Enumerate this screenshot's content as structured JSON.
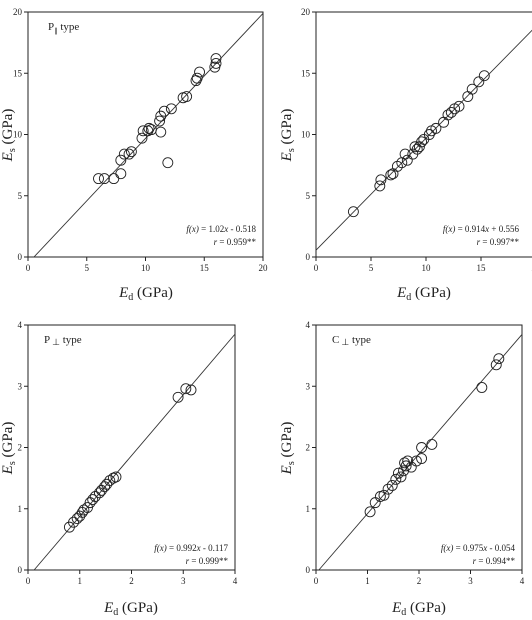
{
  "chart_data": [
    {
      "type": "scatter",
      "panel_label": "P",
      "panel_symbol": "∥",
      "panel_suffix": " type",
      "xlim": [
        0,
        20
      ],
      "ylim": [
        0,
        20
      ],
      "xticks": [
        "0",
        "5",
        "10",
        "15",
        "20"
      ],
      "yticks": [
        "0",
        "5",
        "10",
        "15",
        "20"
      ],
      "xlabel": {
        "var": "E",
        "sub": "d",
        "unit": " (GPa)"
      },
      "ylabel": {
        "var": "E",
        "sub": "s",
        "unit": " (GPa)"
      },
      "equation": {
        "prefix": "f(x)",
        "body": " = 1.02",
        "x": "x",
        "rest": " - 0.518"
      },
      "r_text": {
        "prefix": "r",
        "body": " = 0.959**"
      },
      "fit": {
        "slope": 1.02,
        "intercept": -0.518
      },
      "points": [
        [
          6.0,
          6.4
        ],
        [
          6.5,
          6.4
        ],
        [
          7.3,
          6.4
        ],
        [
          7.9,
          7.9
        ],
        [
          7.9,
          6.8
        ],
        [
          8.2,
          8.4
        ],
        [
          8.6,
          8.4
        ],
        [
          8.8,
          8.6
        ],
        [
          9.7,
          9.7
        ],
        [
          9.8,
          10.3
        ],
        [
          10.2,
          10.3
        ],
        [
          10.3,
          10.5
        ],
        [
          10.5,
          10.4
        ],
        [
          11.3,
          10.2
        ],
        [
          11.2,
          11.1
        ],
        [
          11.3,
          11.5
        ],
        [
          11.6,
          11.9
        ],
        [
          11.9,
          7.7
        ],
        [
          12.2,
          12.1
        ],
        [
          13.2,
          13.0
        ],
        [
          13.5,
          13.1
        ],
        [
          14.3,
          14.4
        ],
        [
          14.4,
          14.6
        ],
        [
          14.6,
          15.1
        ],
        [
          15.9,
          15.5
        ],
        [
          16.0,
          15.8
        ],
        [
          16.0,
          16.2
        ]
      ]
    },
    {
      "type": "scatter",
      "panel_label": "",
      "panel_symbol": "",
      "panel_suffix": "",
      "xlim": [
        0,
        20
      ],
      "ylim": [
        0,
        20
      ],
      "xticks": [
        "0",
        "5",
        "10",
        "15",
        "20"
      ],
      "yticks": [
        "0",
        "5",
        "10",
        "15",
        "20"
      ],
      "xlabel": {
        "var": "E",
        "sub": "d",
        "unit": " (GPa)"
      },
      "ylabel": {
        "var": "E",
        "sub": "s",
        "unit": " (GPa)"
      },
      "equation": {
        "prefix": "f(x)",
        "body": " = 0.914",
        "x": "x",
        "rest": " + 0.556"
      },
      "r_text": {
        "prefix": "r",
        "body": " = 0.997**"
      },
      "fit": {
        "slope": 0.914,
        "intercept": 0.556
      },
      "points": [
        [
          3.4,
          3.7
        ],
        [
          5.8,
          5.8
        ],
        [
          5.9,
          6.3
        ],
        [
          6.8,
          6.7
        ],
        [
          7.0,
          6.8
        ],
        [
          7.4,
          7.4
        ],
        [
          7.8,
          7.7
        ],
        [
          8.1,
          8.4
        ],
        [
          8.3,
          7.9
        ],
        [
          8.8,
          8.4
        ],
        [
          9.0,
          9.0
        ],
        [
          9.2,
          8.8
        ],
        [
          9.4,
          9.0
        ],
        [
          9.6,
          9.4
        ],
        [
          9.8,
          9.6
        ],
        [
          10.3,
          10.0
        ],
        [
          10.5,
          10.3
        ],
        [
          10.9,
          10.5
        ],
        [
          11.6,
          11.0
        ],
        [
          12.0,
          11.6
        ],
        [
          12.3,
          11.8
        ],
        [
          12.6,
          12.1
        ],
        [
          13.0,
          12.3
        ],
        [
          13.8,
          13.1
        ],
        [
          14.2,
          13.7
        ],
        [
          14.8,
          14.3
        ],
        [
          15.3,
          14.8
        ]
      ]
    },
    {
      "type": "scatter",
      "panel_label": "P",
      "panel_symbol": "⊥",
      "panel_suffix": " type",
      "xlim": [
        0,
        4
      ],
      "ylim": [
        0,
        4
      ],
      "xticks": [
        "0",
        "1",
        "2",
        "3",
        "4"
      ],
      "yticks": [
        "0",
        "1",
        "2",
        "3",
        "4"
      ],
      "xlabel": {
        "var": "E",
        "sub": "d",
        "unit": " (GPa)"
      },
      "ylabel": {
        "var": "E",
        "sub": "s",
        "unit": " (GPa)"
      },
      "equation": {
        "prefix": "f(x)",
        "body": " = 0.992",
        "x": "x",
        "rest": " - 0.117"
      },
      "r_text": {
        "prefix": "r",
        "body": " = 0.999**"
      },
      "fit": {
        "slope": 0.992,
        "intercept": -0.117
      },
      "points": [
        [
          0.8,
          0.7
        ],
        [
          0.88,
          0.78
        ],
        [
          0.95,
          0.84
        ],
        [
          1.0,
          0.88
        ],
        [
          1.05,
          0.94
        ],
        [
          1.08,
          0.98
        ],
        [
          1.15,
          1.02
        ],
        [
          1.2,
          1.1
        ],
        [
          1.25,
          1.15
        ],
        [
          1.3,
          1.2
        ],
        [
          1.38,
          1.26
        ],
        [
          1.42,
          1.3
        ],
        [
          1.48,
          1.36
        ],
        [
          1.52,
          1.4
        ],
        [
          1.58,
          1.46
        ],
        [
          1.65,
          1.5
        ],
        [
          1.7,
          1.52
        ],
        [
          2.9,
          2.82
        ],
        [
          3.05,
          2.96
        ],
        [
          3.15,
          2.94
        ]
      ]
    },
    {
      "type": "scatter",
      "panel_label": "C",
      "panel_symbol": "⊥",
      "panel_suffix": " type",
      "xlim": [
        0,
        4
      ],
      "ylim": [
        0,
        4
      ],
      "xticks": [
        "0",
        "1",
        "2",
        "3",
        "4"
      ],
      "yticks": [
        "0",
        "1",
        "2",
        "3",
        "4"
      ],
      "xlabel": {
        "var": "E",
        "sub": "d",
        "unit": " (GPa)"
      },
      "ylabel": {
        "var": "E",
        "sub": "s",
        "unit": " (GPa)"
      },
      "equation": {
        "prefix": "f(x)",
        "body": " = 0.975",
        "x": "x",
        "rest": " - 0.054"
      },
      "r_text": {
        "prefix": "r",
        "body": " = 0.994**"
      },
      "fit": {
        "slope": 0.975,
        "intercept": -0.054
      },
      "points": [
        [
          1.05,
          0.95
        ],
        [
          1.15,
          1.1
        ],
        [
          1.25,
          1.2
        ],
        [
          1.32,
          1.22
        ],
        [
          1.4,
          1.32
        ],
        [
          1.48,
          1.38
        ],
        [
          1.55,
          1.48
        ],
        [
          1.6,
          1.58
        ],
        [
          1.65,
          1.52
        ],
        [
          1.7,
          1.62
        ],
        [
          1.72,
          1.75
        ],
        [
          1.75,
          1.7
        ],
        [
          1.78,
          1.78
        ],
        [
          1.85,
          1.68
        ],
        [
          1.95,
          1.78
        ],
        [
          2.05,
          2.0
        ],
        [
          2.05,
          1.82
        ],
        [
          2.25,
          2.05
        ],
        [
          3.22,
          2.98
        ],
        [
          3.5,
          3.35
        ],
        [
          3.55,
          3.45
        ]
      ]
    }
  ]
}
